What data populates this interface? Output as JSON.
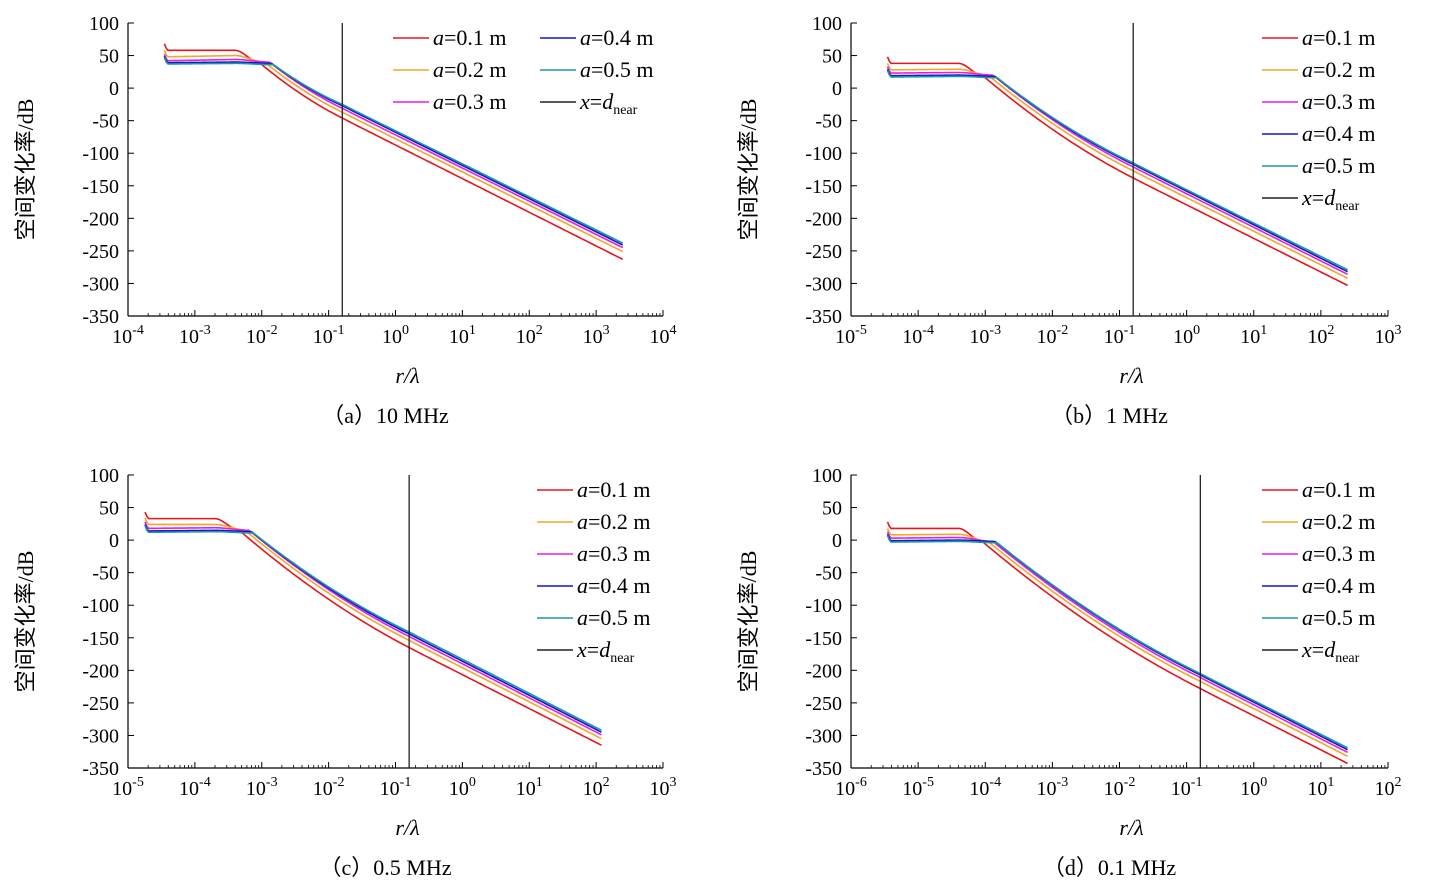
{
  "figure": {
    "legend_items": [
      {
        "var": "a",
        "text": "=0.1 m",
        "color": "#e8141c"
      },
      {
        "var": "a",
        "text": "=0.2 m",
        "color": "#f5a623"
      },
      {
        "var": "a",
        "text": "=0.3 m",
        "color": "#e81ce8"
      },
      {
        "var": "a",
        "text": "=0.4 m",
        "color": "#1414d2"
      },
      {
        "var": "a",
        "text": "=0.5 m",
        "color": "#1a9a9a"
      },
      {
        "var": "x",
        "text": "=",
        "dvar": "d",
        "sub": "near",
        "color": "#222222"
      }
    ]
  },
  "chart_data": [
    {
      "id": "a",
      "type": "line",
      "caption": "（a）10 MHz",
      "xlabel": "r/λ",
      "ylabel": "空间变化率/dB",
      "xscale": "log",
      "xlim_exp": [
        -4,
        4
      ],
      "ylim": [
        -350,
        100
      ],
      "yticks": [
        100,
        50,
        0,
        -50,
        -100,
        -150,
        -200,
        -250,
        -300,
        -350
      ],
      "xtick_labels": [
        "10-4",
        "10-3",
        "10-2",
        "10-1",
        "100",
        "101",
        "102",
        "103",
        "104"
      ],
      "vline_x": 0.16,
      "legend_columns": 2,
      "curve_x_range": [
        0.00035,
        2500
      ],
      "series": [
        {
          "name": "a=0.1 m",
          "x": [
            0.00035,
            0.004,
            0.009,
            0.16,
            2500
          ],
          "y": [
            58,
            58,
            40,
            -46,
            -263
          ]
        },
        {
          "name": "a=0.2 m",
          "x": [
            0.00035,
            0.004,
            0.011,
            0.16,
            2500
          ],
          "y": [
            48,
            50,
            40,
            -37,
            -251
          ]
        },
        {
          "name": "a=0.3 m",
          "x": [
            0.00035,
            0.004,
            0.013,
            0.16,
            2500
          ],
          "y": [
            42,
            44,
            40,
            -31,
            -245
          ]
        },
        {
          "name": "a=0.4 m",
          "x": [
            0.00035,
            0.004,
            0.014,
            0.16,
            2500
          ],
          "y": [
            39,
            40,
            38,
            -27,
            -241
          ]
        },
        {
          "name": "a=0.5 m",
          "x": [
            0.00035,
            0.004,
            0.015,
            0.16,
            2500
          ],
          "y": [
            37,
            38,
            36,
            -25,
            -238
          ]
        }
      ]
    },
    {
      "id": "b",
      "type": "line",
      "caption": "（b）1 MHz",
      "xlabel": "r/λ",
      "ylabel": "空间变化率/dB",
      "xscale": "log",
      "xlim_exp": [
        -5,
        3
      ],
      "ylim": [
        -350,
        100
      ],
      "yticks": [
        100,
        50,
        0,
        -50,
        -100,
        -150,
        -200,
        -250,
        -300,
        -350
      ],
      "xtick_labels": [
        "10-5",
        "10-4",
        "10-3",
        "10-2",
        "10-1",
        "100",
        "101",
        "102",
        "103"
      ],
      "vline_x": 0.16,
      "legend_columns": 1,
      "curve_x_range": [
        3.5e-05,
        250
      ],
      "series": [
        {
          "name": "a=0.1 m",
          "x": [
            3.5e-05,
            0.0004,
            0.0009,
            0.16,
            250
          ],
          "y": [
            38,
            38,
            20,
            -138,
            -303
          ]
        },
        {
          "name": "a=0.2 m",
          "x": [
            3.5e-05,
            0.0004,
            0.0011,
            0.16,
            250
          ],
          "y": [
            28,
            29,
            20,
            -127,
            -292
          ]
        },
        {
          "name": "a=0.3 m",
          "x": [
            3.5e-05,
            0.0004,
            0.0013,
            0.16,
            250
          ],
          "y": [
            23,
            24,
            20,
            -121,
            -286
          ]
        },
        {
          "name": "a=0.4 m",
          "x": [
            3.5e-05,
            0.0004,
            0.0014,
            0.16,
            250
          ],
          "y": [
            19,
            20,
            18,
            -117,
            -282
          ]
        },
        {
          "name": "a=0.5 m",
          "x": [
            3.5e-05,
            0.0004,
            0.0015,
            0.16,
            250
          ],
          "y": [
            17,
            18,
            16,
            -115,
            -279
          ]
        }
      ]
    },
    {
      "id": "c",
      "type": "line",
      "caption": "（c）0.5 MHz",
      "xlabel": "r/λ",
      "ylabel": "空间变化率/dB",
      "xscale": "log",
      "xlim_exp": [
        -5,
        3
      ],
      "ylim": [
        -350,
        100
      ],
      "yticks": [
        100,
        50,
        0,
        -50,
        -100,
        -150,
        -200,
        -250,
        -300,
        -350
      ],
      "xtick_labels": [
        "10-5",
        "10-4",
        "10-3",
        "10-2",
        "10-1",
        "100",
        "101",
        "102",
        "103"
      ],
      "vline_x": 0.16,
      "legend_columns": 1,
      "curve_x_range": [
        1.8e-05,
        120
      ],
      "series": [
        {
          "name": "a=0.1 m",
          "x": [
            1.8e-05,
            0.0002,
            0.00045,
            0.16,
            120
          ],
          "y": [
            33,
            33,
            16,
            -165,
            -315
          ]
        },
        {
          "name": "a=0.2 m",
          "x": [
            1.8e-05,
            0.0002,
            0.00055,
            0.16,
            120
          ],
          "y": [
            24,
            24,
            16,
            -154,
            -305
          ]
        },
        {
          "name": "a=0.3 m",
          "x": [
            1.8e-05,
            0.0002,
            0.00065,
            0.16,
            120
          ],
          "y": [
            18,
            19,
            15,
            -148,
            -299
          ]
        },
        {
          "name": "a=0.4 m",
          "x": [
            1.8e-05,
            0.0002,
            0.0007,
            0.16,
            120
          ],
          "y": [
            14,
            15,
            13,
            -144,
            -295
          ]
        },
        {
          "name": "a=0.5 m",
          "x": [
            1.8e-05,
            0.0002,
            0.00075,
            0.16,
            120
          ],
          "y": [
            12,
            13,
            11,
            -141,
            -292
          ]
        }
      ]
    },
    {
      "id": "d",
      "type": "line",
      "caption": "（d）0.1 MHz",
      "xlabel": "r/λ",
      "ylabel": "空间变化率/dB",
      "xscale": "log",
      "xlim_exp": [
        -6,
        2
      ],
      "ylim": [
        -350,
        100
      ],
      "yticks": [
        100,
        50,
        0,
        -50,
        -100,
        -150,
        -200,
        -250,
        -300,
        -350
      ],
      "xtick_labels": [
        "10-6",
        "10-5",
        "10-4",
        "10-3",
        "10-2",
        "10-1",
        "100",
        "101",
        "102"
      ],
      "vline_x": 0.16,
      "legend_columns": 1,
      "curve_x_range": [
        3.5e-06,
        25
      ],
      "series": [
        {
          "name": "a=0.1 m",
          "x": [
            3.5e-06,
            4e-05,
            9e-05,
            0.16,
            25
          ],
          "y": [
            18,
            18,
            -2,
            -228,
            -343
          ]
        },
        {
          "name": "a=0.2 m",
          "x": [
            3.5e-06,
            4e-05,
            0.00011,
            0.16,
            25
          ],
          "y": [
            8,
            9,
            -2,
            -217,
            -332
          ]
        },
        {
          "name": "a=0.3 m",
          "x": [
            3.5e-06,
            4e-05,
            0.00013,
            0.16,
            25
          ],
          "y": [
            3,
            4,
            -2,
            -211,
            -326
          ]
        },
        {
          "name": "a=0.4 m",
          "x": [
            3.5e-06,
            4e-05,
            0.00014,
            0.16,
            25
          ],
          "y": [
            -1,
            0,
            -2,
            -207,
            -322
          ]
        },
        {
          "name": "a=0.5 m",
          "x": [
            3.5e-06,
            4e-05,
            0.00015,
            0.16,
            25
          ],
          "y": [
            -3,
            -2,
            -4,
            -205,
            -319
          ]
        }
      ]
    }
  ]
}
